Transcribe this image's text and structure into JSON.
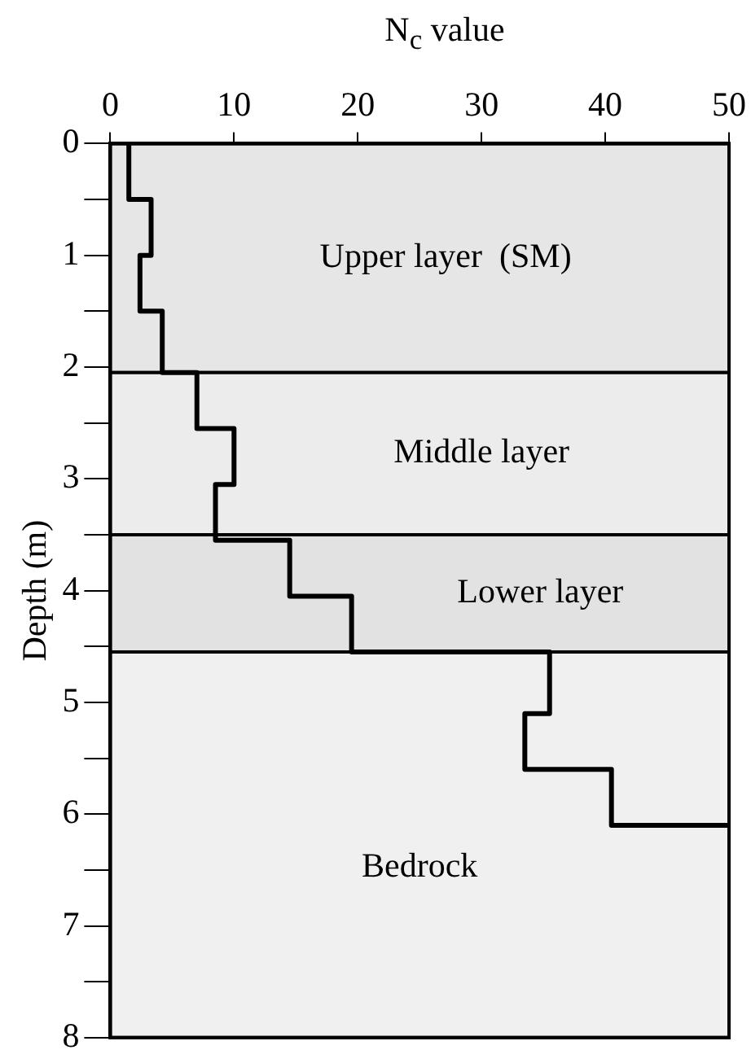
{
  "chart_data": {
    "type": "line",
    "xlabel": "N$_{c}$ value",
    "ylabel": "Depth (m)",
    "xlim": [
      0,
      50
    ],
    "xticks": [
      0,
      10,
      20,
      30,
      40,
      50
    ],
    "ylim": [
      8,
      0
    ],
    "yticks": [
      0,
      {
        "value": 0.5,
        "label": null
      },
      1,
      {
        "value": 1.5,
        "label": null
      },
      2,
      {
        "value": 2.5,
        "label": null
      },
      3,
      {
        "value": 3.5,
        "label": null
      },
      4,
      {
        "value": 4.5,
        "label": null
      },
      5,
      {
        "value": 5.5,
        "label": null
      },
      6,
      {
        "value": 6.5,
        "label": null
      },
      7,
      {
        "value": 7.5,
        "label": null
      },
      8
    ],
    "legend": false,
    "marker": "none",
    "line_style": "solid",
    "series": [
      {
        "color": "#000000",
        "x": [
          1.5,
          1.5,
          3.3,
          3.3,
          2.4,
          2.4,
          4.2,
          4.2,
          7,
          7,
          10,
          10,
          8.5,
          8.5,
          14.5,
          14.5,
          19.5,
          19.5,
          35.5,
          35.5,
          33.5,
          33.5,
          40.5,
          40.5,
          50
        ],
        "values": [
          0,
          0.5,
          0.5,
          1,
          1,
          1.5,
          1.5,
          2.05,
          2.05,
          2.55,
          2.55,
          3.05,
          3.05,
          3.55,
          3.55,
          4.05,
          4.05,
          4.55,
          4.55,
          5.1,
          5.1,
          5.6,
          5.6,
          6.1,
          6.1
        ]
      }
    ],
    "bands": [
      {
        "axis": "y",
        "from": 0,
        "to": 2.05,
        "label": "Upper layer  (SM)",
        "color": "#e6e6e6"
      },
      {
        "axis": "y",
        "from": 2.05,
        "to": 3.5,
        "label": "Middle layer",
        "color": "#ececec"
      },
      {
        "axis": "y",
        "from": 3.5,
        "to": 4.55,
        "label": "Lower layer",
        "color": "#e2e2e2"
      },
      {
        "axis": "y",
        "from": 4.55,
        "to": 8,
        "label": "Bedrock",
        "color": "#f0f0f0"
      }
    ]
  }
}
